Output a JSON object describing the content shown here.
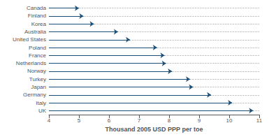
{
  "chart_data": {
    "type": "arrow",
    "categories": [
      "Canada",
      "Finland",
      "Korea",
      "Australia",
      "United States",
      "Poland",
      "France",
      "Netherlands",
      "Norway",
      "Turkey",
      "Japan",
      "Germany",
      "Italy",
      "UK"
    ],
    "values": [
      5.0,
      5.15,
      5.5,
      6.3,
      6.7,
      7.6,
      7.85,
      7.9,
      8.1,
      8.7,
      8.8,
      9.4,
      10.1,
      10.8
    ],
    "start": 4.0,
    "orientation": "horizontal",
    "color": "#1a4f7a",
    "xlabel": "Thousand 2005 USD PPP per toe",
    "xlim": [
      4,
      11
    ],
    "xticks": [
      4,
      5,
      6,
      7,
      8,
      9,
      10,
      11
    ],
    "grid": true
  }
}
